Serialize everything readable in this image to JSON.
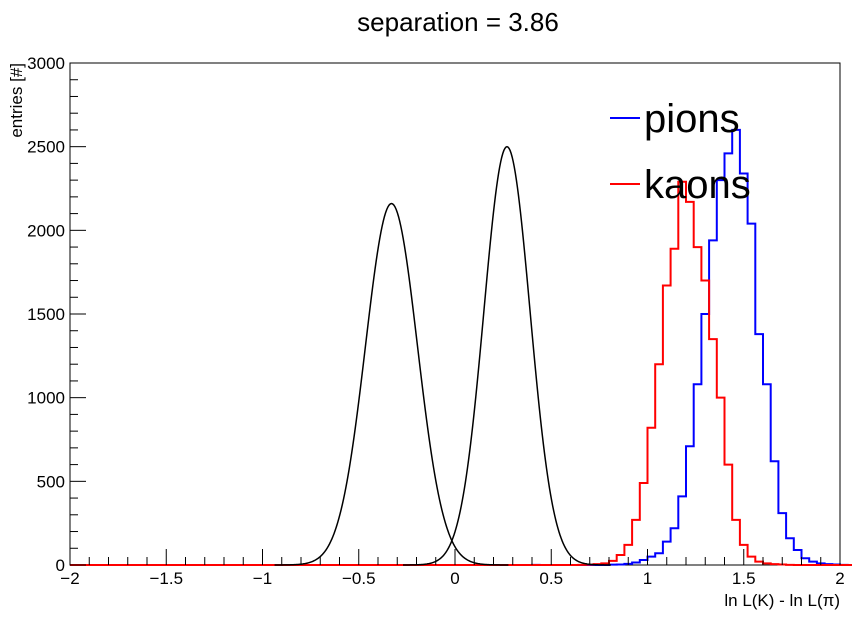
{
  "chart_data": {
    "type": "histogram",
    "title": "separation = 3.86",
    "xlabel": "ln L(K) - ln L(π)",
    "ylabel": "entries [#]",
    "xlim": [
      -2,
      2
    ],
    "ylim": [
      0,
      3000
    ],
    "x_ticks": [
      -2,
      -1.5,
      -1,
      -0.5,
      0,
      0.5,
      1,
      1.5,
      2
    ],
    "x_tick_labels": [
      "−2",
      "−1.5",
      "−1",
      "−0.5",
      "0",
      "0.5",
      "1",
      "1.5",
      "2"
    ],
    "y_ticks": [
      0,
      500,
      1000,
      1500,
      2000,
      2500,
      3000
    ],
    "y_tick_labels": [
      "0",
      "500",
      "1000",
      "1500",
      "2000",
      "2500",
      "3000"
    ],
    "bin_width": 0.04,
    "bin_edges_start": -2,
    "grid": false,
    "legend": {
      "placement": "top-right"
    },
    "series": [
      {
        "name": "pions",
        "color": "#0000ff",
        "values": [
          0,
          0,
          0,
          0,
          0,
          0,
          0,
          0,
          0,
          0,
          0,
          0,
          0,
          0,
          0,
          0,
          0,
          0,
          0,
          0,
          0,
          0,
          0,
          0,
          0,
          0,
          0,
          0,
          0,
          0,
          0,
          0,
          0,
          0,
          0,
          0,
          0,
          0,
          0,
          0,
          0,
          0,
          0,
          0,
          0,
          0,
          0,
          0,
          0,
          0,
          0,
          0,
          0,
          0,
          0,
          0,
          0,
          0,
          0,
          0,
          1,
          0,
          0,
          0,
          0,
          0,
          0,
          0,
          0,
          0,
          2,
          3,
          7,
          15,
          30,
          50,
          70,
          140,
          220,
          410,
          710,
          1080,
          1500,
          1940,
          2300,
          2460,
          2600,
          2340,
          2040,
          1380,
          1080,
          620,
          310,
          160,
          90,
          40,
          20,
          10,
          5,
          3,
          1,
          0,
          0,
          0,
          0,
          0,
          0,
          0,
          0,
          0,
          0,
          0,
          0,
          0,
          0,
          0,
          0,
          0,
          0,
          0,
          0,
          0,
          0,
          0,
          0,
          0,
          0,
          0,
          0,
          0,
          0,
          0,
          0,
          0,
          0,
          0,
          0,
          0,
          0,
          0,
          0,
          0,
          0,
          0,
          0,
          0,
          0,
          0,
          0,
          0,
          0,
          0,
          0,
          0,
          0,
          0,
          0,
          0,
          0,
          0
        ]
      },
      {
        "name": "kaons",
        "color": "#ff0000",
        "values": [
          0,
          0,
          0,
          0,
          0,
          0,
          0,
          0,
          0,
          0,
          0,
          0,
          0,
          0,
          0,
          0,
          0,
          0,
          0,
          0,
          0,
          0,
          0,
          0,
          0,
          0,
          0,
          0,
          0,
          0,
          0,
          0,
          0,
          0,
          0,
          0,
          0,
          0,
          0,
          0,
          0,
          0,
          0,
          0,
          0,
          0,
          0,
          0,
          0,
          0,
          0,
          0,
          0,
          0,
          0,
          0,
          0,
          0,
          0,
          0,
          0,
          0,
          0,
          0,
          0,
          0,
          1,
          2,
          5,
          10,
          25,
          60,
          120,
          270,
          490,
          820,
          1200,
          1670,
          1890,
          2290,
          2170,
          1900,
          1700,
          1350,
          1000,
          600,
          270,
          120,
          50,
          20,
          10,
          5,
          3,
          1,
          0,
          0,
          0,
          0,
          0,
          0,
          0,
          0,
          0,
          0,
          0,
          0,
          0,
          0,
          0,
          0,
          0,
          0,
          0,
          0,
          0,
          0,
          0,
          0,
          0,
          0,
          0,
          0,
          0,
          0,
          0,
          0,
          0,
          0,
          0,
          0,
          0,
          0,
          0,
          0,
          0,
          0,
          0,
          0,
          0,
          0,
          0,
          0,
          0,
          0,
          0,
          0,
          0,
          0,
          0,
          0,
          0,
          0,
          0,
          0,
          0,
          0,
          0,
          0,
          0,
          0,
          0,
          0
        ]
      }
    ],
    "fits": [
      {
        "shape": "gaussian",
        "color": "#000000",
        "amplitude": 2500,
        "mean": 0.27,
        "sigma": 0.12
      },
      {
        "shape": "gaussian",
        "color": "#000000",
        "amplitude": 2160,
        "mean": -0.33,
        "sigma": 0.135
      }
    ]
  }
}
